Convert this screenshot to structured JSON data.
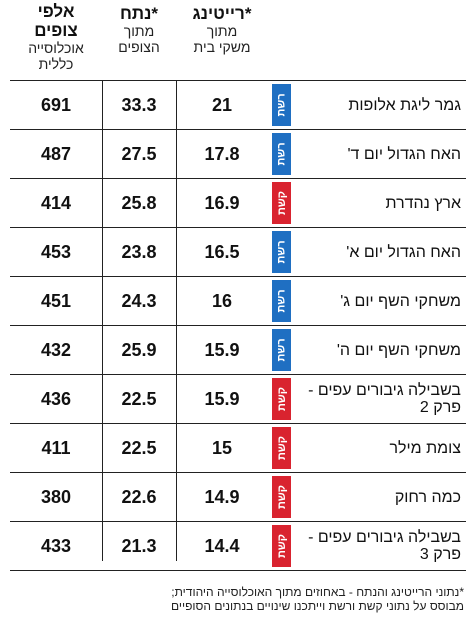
{
  "header": {
    "rating": {
      "title": "רייטינג*",
      "sub1": "מתוך",
      "sub2": "משקי בית"
    },
    "share": {
      "title": "נתח*",
      "sub1": "מתוך",
      "sub2": "הצופים"
    },
    "viewers": {
      "title1": "אלפי",
      "title2": "צופים",
      "sub1": "אוכלוסייה",
      "sub2": "כללית"
    }
  },
  "rows": [
    {
      "show": "גמר ליגת אלופות",
      "channel": "רשת",
      "rating": "21",
      "share": "33.3",
      "viewers": "691"
    },
    {
      "show": "האח הגדול יום ד'",
      "channel": "רשת",
      "rating": "17.8",
      "share": "27.5",
      "viewers": "487"
    },
    {
      "show": "ארץ נהדרת",
      "channel": "קשת",
      "rating": "16.9",
      "share": "25.8",
      "viewers": "414"
    },
    {
      "show": "האח הגדול יום א'",
      "channel": "רשת",
      "rating": "16.5",
      "share": "23.8",
      "viewers": "453"
    },
    {
      "show": "משחקי השף יום ג'",
      "channel": "רשת",
      "rating": "16",
      "share": "24.3",
      "viewers": "451"
    },
    {
      "show": "משחקי השף יום ה'",
      "channel": "רשת",
      "rating": "15.9",
      "share": "25.9",
      "viewers": "432"
    },
    {
      "show": "בשבילה גיבורים עפים - פרק 2",
      "channel": "קשת",
      "rating": "15.9",
      "share": "22.5",
      "viewers": "436"
    },
    {
      "show": "צומת מילר",
      "channel": "קשת",
      "rating": "15",
      "share": "22.5",
      "viewers": "411"
    },
    {
      "show": "כמה רחוק",
      "channel": "קשת",
      "rating": "14.9",
      "share": "22.6",
      "viewers": "380"
    },
    {
      "show": "בשבילה גיבורים עפים - פרק 3",
      "channel": "קשת",
      "rating": "14.4",
      "share": "21.3",
      "viewers": "433"
    }
  ],
  "colors": {
    "reshet": "#1f6fc2",
    "kan": "#d9232f"
  },
  "footnote": {
    "line1": "*נתוני הרייטינג והנתח - באחוזים מתוך האוכלוסייה היהודית;",
    "line2": "מבוסס על נתוני קשת ורשת וייתכנו שינויים בנתונים הסופיים"
  }
}
